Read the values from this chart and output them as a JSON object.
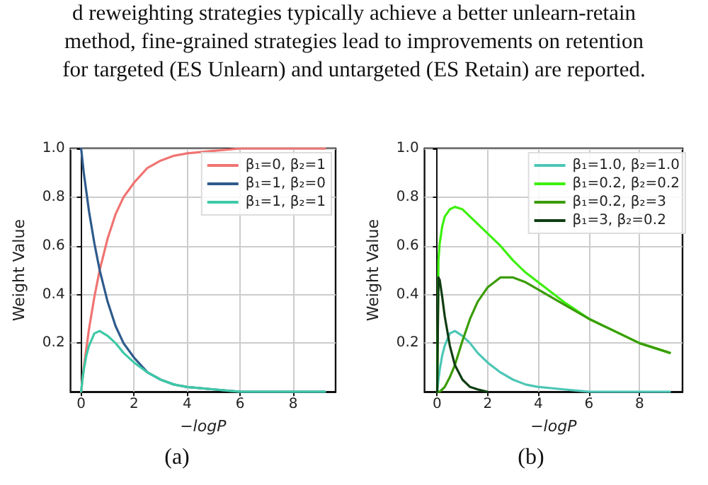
{
  "chart_data": [
    {
      "type": "line",
      "xlabel": "−logP",
      "ylabel": "Weight Value",
      "xlim": [
        -0.4,
        9.6
      ],
      "ylim": [
        0,
        1
      ],
      "xticks": [
        0,
        2,
        4,
        6,
        8
      ],
      "yticks": [
        0.2,
        0.4,
        0.6,
        0.8,
        {
          "value": 1,
          "label": "1.0"
        }
      ],
      "grid": true,
      "legend": "top right",
      "marker": "none",
      "line_style": "solid",
      "x": [
        0,
        0.05,
        0.1,
        0.2,
        0.3,
        0.5,
        0.7,
        1,
        1.3,
        1.6,
        2,
        2.5,
        3,
        3.5,
        4,
        5,
        6,
        7,
        8,
        9.2
      ],
      "annotations": [
        "d reweighting strategies typically achieve a better unlearn-retain",
        "method, fine-grained strategies lead to improvements on retention",
        "for targeted (ES Unlearn) and untargeted (ES Retain) are reported.",
        "(a)"
      ],
      "series": [
        {
          "name": "β₁=0, β₂=1",
          "color": "#f07472",
          "values": [
            0,
            0.05,
            0.1,
            0.18,
            0.26,
            0.39,
            0.5,
            0.63,
            0.73,
            0.8,
            0.86,
            0.92,
            0.95,
            0.97,
            0.98,
            0.99,
            1,
            1,
            1,
            1
          ]
        },
        {
          "name": "β₁=1, β₂=0",
          "color": "#2f5b8c",
          "values": [
            1,
            0.95,
            0.9,
            0.82,
            0.74,
            0.61,
            0.5,
            0.37,
            0.27,
            0.2,
            0.14,
            0.08,
            0.05,
            0.03,
            0.02,
            0.01,
            0,
            0,
            0,
            0
          ]
        },
        {
          "name": "β₁=1, β₂=1",
          "color": "#3ec9a7",
          "values": [
            0,
            0.05,
            0.09,
            0.15,
            0.19,
            0.24,
            0.25,
            0.23,
            0.2,
            0.16,
            0.12,
            0.08,
            0.05,
            0.03,
            0.02,
            0.01,
            0,
            0,
            0,
            0
          ]
        }
      ]
    },
    {
      "type": "line",
      "xlabel": "−logP",
      "ylabel": "Weight Value",
      "xlim": [
        -0.5,
        9.7
      ],
      "ylim": [
        0,
        1
      ],
      "xticks": [
        0,
        2,
        4,
        6,
        8
      ],
      "yticks": [
        0.2,
        0.4,
        0.6,
        0.8,
        {
          "value": 1,
          "label": "1.0"
        }
      ],
      "grid": true,
      "legend": "top right",
      "marker": "none",
      "line_style": "solid",
      "x": [
        0,
        0.05,
        0.1,
        0.2,
        0.3,
        0.5,
        0.7,
        1,
        1.3,
        1.6,
        2,
        2.5,
        3,
        3.5,
        4,
        5,
        6,
        7,
        8,
        9.2
      ],
      "annotations": [
        "(b)"
      ],
      "series": [
        {
          "name": "β₁=1.0, β₂=1.0",
          "color": "#4cc6b6",
          "values": [
            0,
            0.05,
            0.09,
            0.15,
            0.19,
            0.24,
            0.25,
            0.23,
            0.2,
            0.16,
            0.12,
            0.08,
            0.05,
            0.03,
            0.02,
            0.01,
            0,
            0,
            0,
            0
          ]
        },
        {
          "name": "β₁=0.2, β₂=0.2",
          "color": "#3cf00c",
          "values": [
            0,
            0.54,
            0.61,
            0.68,
            0.72,
            0.75,
            0.76,
            0.75,
            0.72,
            0.69,
            0.65,
            0.6,
            0.54,
            0.49,
            0.45,
            0.37,
            0.3,
            0.25,
            0.2,
            0.16
          ]
        },
        {
          "name": "β₁=0.2, β₂=3",
          "color": "#3a9c06",
          "values": [
            0,
            0,
            0,
            0.01,
            0.02,
            0.06,
            0.11,
            0.21,
            0.3,
            0.37,
            0.43,
            0.47,
            0.47,
            0.45,
            0.42,
            0.36,
            0.3,
            0.25,
            0.2,
            0.16
          ]
        },
        {
          "name": "β₁=3, β₂=0.2",
          "color": "#0f3d12",
          "values": [
            0,
            0.47,
            0.46,
            0.39,
            0.31,
            0.19,
            0.11,
            0.05,
            0.02,
            0.01,
            0,
            null,
            null,
            null,
            null,
            null,
            null,
            null,
            null,
            null
          ]
        }
      ]
    }
  ]
}
